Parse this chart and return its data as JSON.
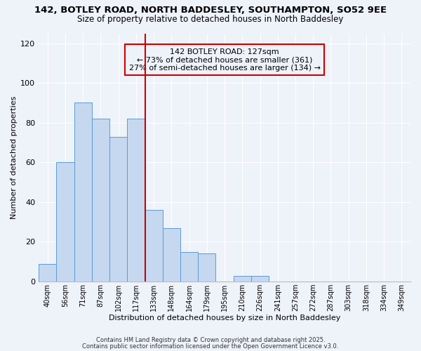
{
  "title1": "142, BOTLEY ROAD, NORTH BADDESLEY, SOUTHAMPTON, SO52 9EE",
  "title2": "Size of property relative to detached houses in North Baddesley",
  "xlabel": "Distribution of detached houses by size in North Baddesley",
  "ylabel": "Number of detached properties",
  "bar_labels": [
    "40sqm",
    "56sqm",
    "71sqm",
    "87sqm",
    "102sqm",
    "117sqm",
    "133sqm",
    "148sqm",
    "164sqm",
    "179sqm",
    "195sqm",
    "210sqm",
    "226sqm",
    "241sqm",
    "257sqm",
    "272sqm",
    "287sqm",
    "303sqm",
    "318sqm",
    "334sqm",
    "349sqm"
  ],
  "bar_values": [
    9,
    60,
    90,
    82,
    73,
    82,
    36,
    27,
    15,
    14,
    0,
    3,
    3,
    0,
    0,
    0,
    0,
    0,
    0,
    0,
    0
  ],
  "bar_color": "#c5d8f0",
  "bar_edge_color": "#5b9bd5",
  "vline_x_idx": 6,
  "vline_color": "#cc0000",
  "annotation_title": "142 BOTLEY ROAD: 127sqm",
  "annotation_line1": "← 73% of detached houses are smaller (361)",
  "annotation_line2": "27% of semi-detached houses are larger (134) →",
  "annotation_box_color": "#cc0000",
  "ylim": [
    0,
    125
  ],
  "yticks": [
    0,
    20,
    40,
    60,
    80,
    100,
    120
  ],
  "bg_color": "#eef2f9",
  "grid_color": "#ffffff",
  "footer1": "Contains HM Land Registry data © Crown copyright and database right 2025.",
  "footer2": "Contains public sector information licensed under the Open Government Licence v3.0.",
  "title_fontsize": 9.5,
  "subtitle_fontsize": 8.5,
  "annotation_fontsize": 8,
  "tick_fontsize": 7,
  "axis_label_fontsize": 8,
  "footer_fontsize": 6
}
